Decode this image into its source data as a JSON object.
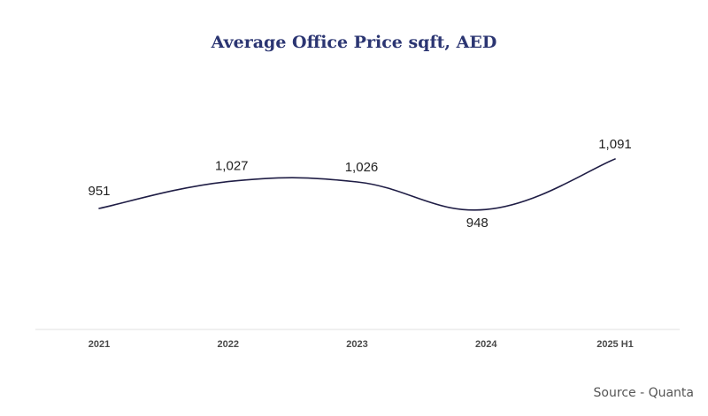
{
  "chart_data": {
    "type": "line",
    "title": "Average Office  Price sqft, AED",
    "categories": [
      "2021",
      "2022",
      "2023",
      "2024",
      "2025 H1"
    ],
    "series": [
      {
        "values": [
          951,
          1027,
          1026,
          948,
          1091
        ],
        "labels": [
          "951",
          "1,027",
          "1,026",
          "948",
          "1,091"
        ]
      }
    ],
    "xlabel": "",
    "ylabel": "",
    "grid": false,
    "legend": "none"
  },
  "source": "Source - Quanta",
  "colors": {
    "line": "#1f1d45",
    "title": "#2b3572",
    "tick_label": "#4a4a4a",
    "data_label": "#222222",
    "baseline": "#e2e2e2",
    "source": "#555555"
  }
}
